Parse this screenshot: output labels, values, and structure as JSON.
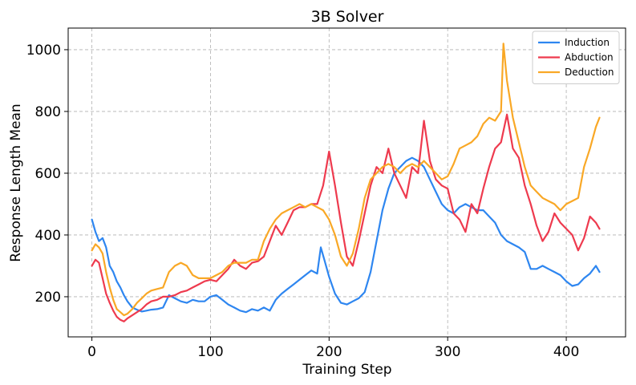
{
  "chart_data": {
    "type": "line",
    "title": "3B Solver",
    "xlabel": "Training Step",
    "ylabel": "Response Length Mean",
    "xlim": [
      -20,
      450
    ],
    "ylim": [
      70,
      1070
    ],
    "xticks": [
      0,
      100,
      200,
      300,
      400
    ],
    "yticks": [
      200,
      400,
      600,
      800,
      1000
    ],
    "grid": true,
    "legend_position": "top-right",
    "series": [
      {
        "name": "Induction",
        "color": "#2E86F0",
        "x": [
          0,
          3,
          6,
          9,
          12,
          15,
          18,
          21,
          24,
          27,
          30,
          34,
          38,
          42,
          46,
          50,
          55,
          60,
          65,
          70,
          75,
          80,
          85,
          90,
          95,
          100,
          105,
          110,
          115,
          120,
          125,
          130,
          135,
          140,
          145,
          150,
          155,
          160,
          165,
          170,
          175,
          180,
          185,
          190,
          193,
          196,
          200,
          205,
          210,
          215,
          220,
          225,
          230,
          235,
          240,
          245,
          250,
          255,
          260,
          265,
          270,
          275,
          280,
          285,
          290,
          295,
          300,
          305,
          310,
          315,
          320,
          325,
          330,
          335,
          340,
          345,
          350,
          355,
          360,
          365,
          370,
          375,
          380,
          385,
          390,
          395,
          400,
          405,
          410,
          415,
          420,
          425,
          428
        ],
        "y": [
          450,
          410,
          380,
          390,
          360,
          300,
          280,
          250,
          230,
          205,
          185,
          165,
          158,
          152,
          155,
          158,
          160,
          165,
          205,
          195,
          185,
          180,
          190,
          185,
          185,
          200,
          205,
          190,
          175,
          165,
          155,
          150,
          160,
          155,
          165,
          155,
          190,
          210,
          225,
          240,
          255,
          270,
          285,
          275,
          360,
          320,
          265,
          210,
          180,
          175,
          185,
          195,
          215,
          280,
          380,
          480,
          550,
          600,
          620,
          640,
          650,
          640,
          620,
          580,
          540,
          500,
          480,
          470,
          490,
          500,
          490,
          480,
          480,
          460,
          440,
          400,
          380,
          370,
          360,
          345,
          290,
          290,
          300,
          290,
          280,
          270,
          250,
          235,
          240,
          260,
          275,
          300,
          280
        ]
      },
      {
        "name": "Abduction",
        "color": "#EE3A4E",
        "x": [
          0,
          3,
          6,
          9,
          12,
          15,
          18,
          21,
          24,
          27,
          30,
          34,
          38,
          42,
          46,
          50,
          55,
          60,
          65,
          70,
          75,
          80,
          85,
          90,
          95,
          100,
          105,
          110,
          115,
          120,
          125,
          130,
          135,
          140,
          145,
          150,
          155,
          160,
          165,
          170,
          175,
          180,
          185,
          190,
          195,
          200,
          205,
          210,
          215,
          220,
          225,
          230,
          235,
          240,
          245,
          250,
          255,
          260,
          265,
          270,
          275,
          280,
          285,
          290,
          295,
          300,
          305,
          310,
          315,
          320,
          325,
          330,
          335,
          340,
          345,
          350,
          355,
          360,
          365,
          370,
          375,
          380,
          385,
          390,
          395,
          400,
          405,
          410,
          415,
          420,
          425,
          428
        ],
        "y": [
          300,
          320,
          310,
          260,
          210,
          180,
          155,
          135,
          125,
          120,
          130,
          140,
          150,
          160,
          175,
          185,
          190,
          200,
          200,
          205,
          215,
          220,
          230,
          240,
          250,
          255,
          250,
          270,
          290,
          320,
          300,
          290,
          310,
          315,
          330,
          380,
          430,
          400,
          440,
          480,
          490,
          490,
          500,
          500,
          560,
          670,
          560,
          440,
          330,
          300,
          380,
          470,
          560,
          620,
          600,
          680,
          600,
          560,
          520,
          620,
          600,
          770,
          640,
          580,
          560,
          550,
          470,
          450,
          410,
          500,
          470,
          550,
          620,
          680,
          700,
          790,
          680,
          650,
          560,
          500,
          430,
          380,
          410,
          470,
          440,
          420,
          400,
          350,
          390,
          460,
          440,
          420
        ]
      },
      {
        "name": "Deduction",
        "color": "#F9A826",
        "x": [
          0,
          3,
          6,
          9,
          12,
          15,
          18,
          21,
          24,
          27,
          30,
          34,
          38,
          42,
          46,
          50,
          55,
          60,
          65,
          70,
          75,
          80,
          85,
          90,
          95,
          100,
          105,
          110,
          115,
          120,
          125,
          130,
          135,
          140,
          145,
          150,
          155,
          160,
          165,
          170,
          175,
          180,
          185,
          190,
          195,
          200,
          205,
          210,
          215,
          220,
          225,
          230,
          235,
          240,
          245,
          250,
          255,
          260,
          265,
          270,
          275,
          280,
          285,
          290,
          295,
          300,
          305,
          310,
          315,
          320,
          325,
          330,
          335,
          340,
          345,
          347,
          350,
          355,
          360,
          365,
          370,
          375,
          380,
          385,
          390,
          395,
          400,
          405,
          410,
          415,
          420,
          425,
          428
        ],
        "y": [
          350,
          370,
          360,
          340,
          280,
          230,
          190,
          160,
          150,
          140,
          145,
          160,
          180,
          195,
          210,
          220,
          225,
          230,
          280,
          300,
          310,
          300,
          270,
          260,
          260,
          260,
          270,
          280,
          300,
          310,
          310,
          310,
          320,
          320,
          380,
          420,
          450,
          470,
          480,
          490,
          500,
          490,
          500,
          490,
          480,
          450,
          400,
          330,
          300,
          340,
          420,
          520,
          580,
          600,
          620,
          630,
          620,
          600,
          620,
          630,
          620,
          640,
          620,
          600,
          580,
          590,
          630,
          680,
          690,
          700,
          720,
          760,
          780,
          770,
          800,
          1020,
          900,
          780,
          700,
          620,
          560,
          540,
          520,
          510,
          500,
          480,
          500,
          510,
          520,
          620,
          680,
          750,
          780
        ]
      }
    ]
  }
}
